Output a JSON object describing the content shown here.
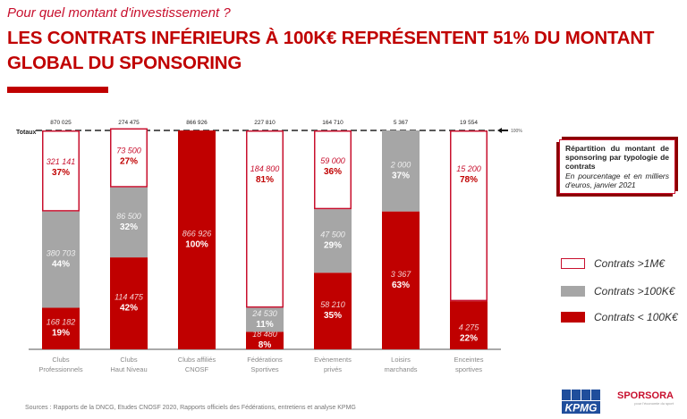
{
  "header": {
    "subtitle": "Pour quel montant d'investissement ?",
    "title": "LES CONTRATS INFÉRIEURS À 100K€ REPRÉSENTENT 51% DU MONTANT GLOBAL DU SPONSORING"
  },
  "note": {
    "title": "Répartition du montant de sponsoring par typologie de contrats",
    "subtitle": "En pourcentage et en milliers d'euros, janvier 2021"
  },
  "footer": {
    "sources": "Sources : Rapports de la DNCG, Etudes CNOSF 2020, Rapports officiels des Fédérations, entretiens et analyse KPMG",
    "logos": [
      "KPMG",
      "SPORSORA"
    ]
  },
  "chart_data": {
    "type": "bar",
    "stacked": true,
    "normalized": true,
    "totals_label": "Totaux",
    "reference_label": "100%",
    "categories": [
      [
        "Clubs",
        "Professionnels"
      ],
      [
        "Clubs",
        "Haut Niveau"
      ],
      [
        "Clubs affiliés",
        "CNOSF"
      ],
      [
        "Fédérations",
        "Sportives"
      ],
      [
        "Evènements",
        "privés"
      ],
      [
        "Loisirs",
        "marchands"
      ],
      [
        "Enceintes",
        "sportives"
      ]
    ],
    "totals": [
      "870 025",
      "274 475",
      "866 926",
      "227 810",
      "164 710",
      "5 367",
      "19 554"
    ],
    "series": [
      {
        "name": "Contrats < 100K€",
        "color": "#c00000",
        "values": [
          "168 182",
          "114 475",
          "866 926",
          "18 480",
          "58 210",
          "3 367",
          "4 275"
        ],
        "percents": [
          19,
          42,
          100,
          8,
          35,
          63,
          22
        ]
      },
      {
        "name": "Contrats >100K€",
        "color": "#a6a6a6",
        "values": [
          "380 703",
          "86 500",
          null,
          "24 530",
          "47 500",
          "2 000",
          "79"
        ],
        "percents": [
          44,
          32,
          0,
          11,
          29,
          37,
          0
        ]
      },
      {
        "name": "Contrats >1M€",
        "color": "#ffffff",
        "border": "#c8102e",
        "values": [
          "321 141",
          "73 500",
          null,
          "184 800",
          "59 000",
          null,
          "15 200"
        ],
        "percents": [
          37,
          27,
          0,
          81,
          36,
          0,
          78
        ]
      }
    ],
    "ylim": [
      0,
      100
    ]
  }
}
